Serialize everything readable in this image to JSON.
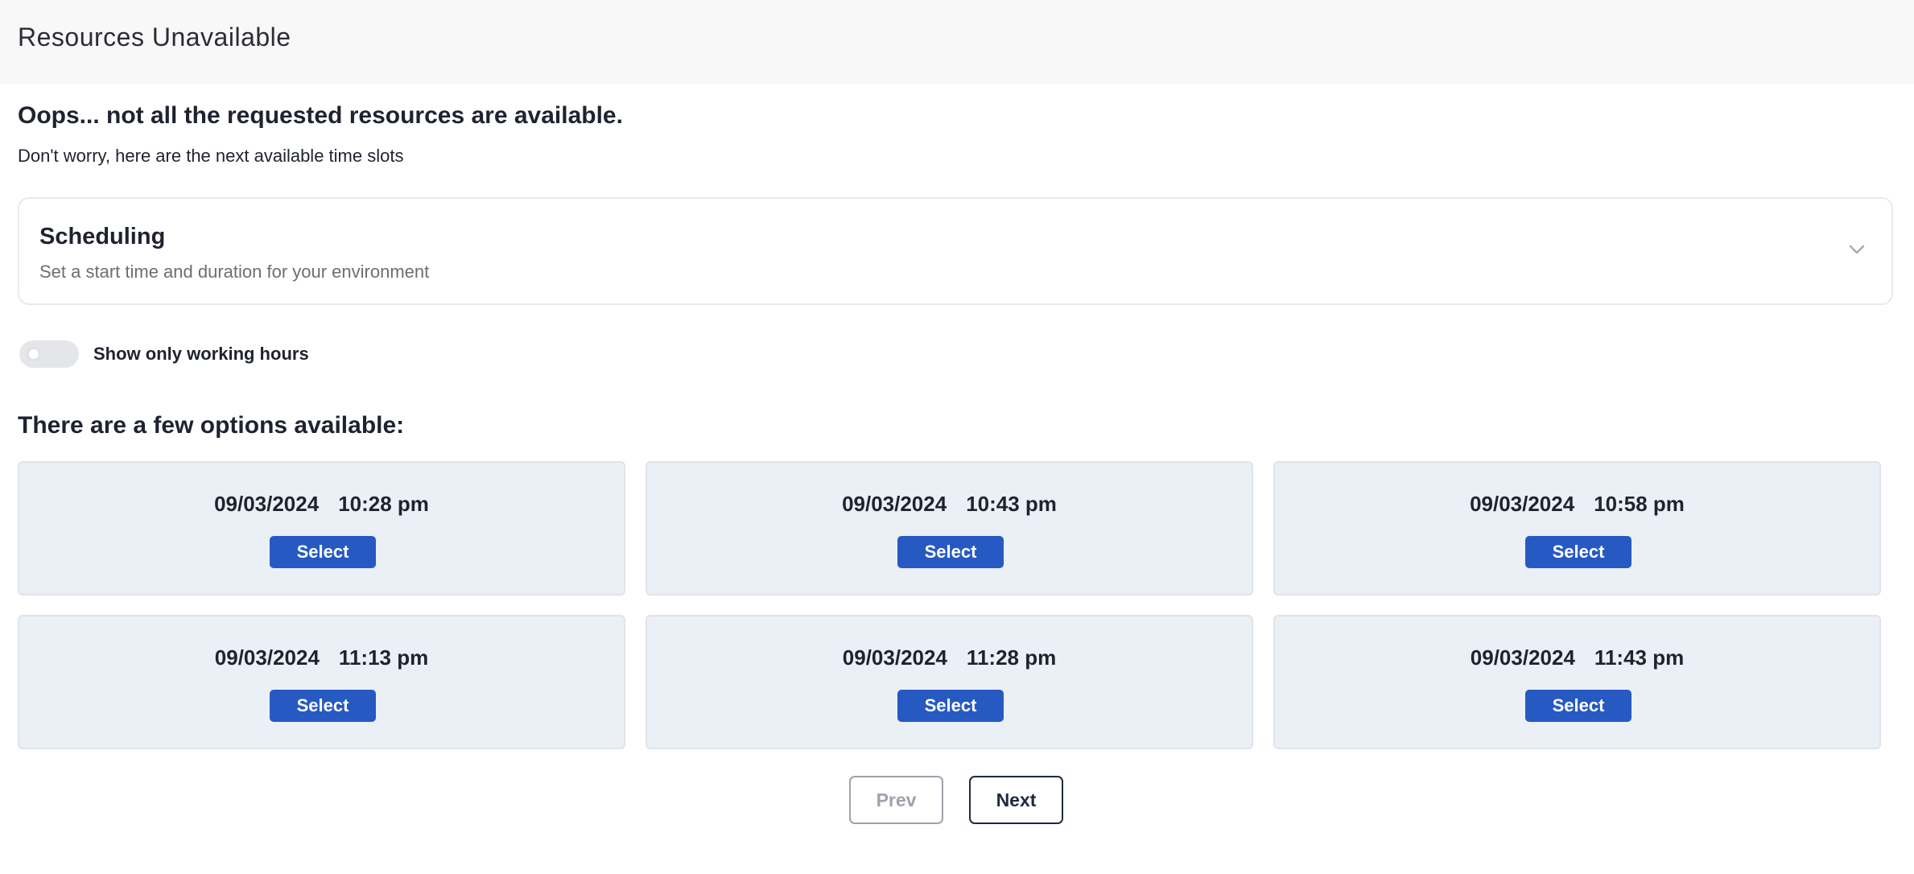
{
  "header": {
    "title": "Resources Unavailable"
  },
  "message": {
    "heading": "Oops... not all the requested resources are available.",
    "subtext": "Don't worry, here are the next available time slots"
  },
  "scheduling": {
    "title": "Scheduling",
    "subtitle": "Set a start time and duration for your environment",
    "expanded": false,
    "icon": "chevron-down-icon"
  },
  "working_hours_toggle": {
    "label": "Show only working hours",
    "checked": false
  },
  "options": {
    "title": "There are a few options available:",
    "slots": [
      {
        "date": "09/03/2024",
        "time": "10:28 pm",
        "button": "Select"
      },
      {
        "date": "09/03/2024",
        "time": "10:43 pm",
        "button": "Select"
      },
      {
        "date": "09/03/2024",
        "time": "10:58 pm",
        "button": "Select"
      },
      {
        "date": "09/03/2024",
        "time": "11:13 pm",
        "button": "Select"
      },
      {
        "date": "09/03/2024",
        "time": "11:28 pm",
        "button": "Select"
      },
      {
        "date": "09/03/2024",
        "time": "11:43 pm",
        "button": "Select"
      }
    ]
  },
  "pagination": {
    "prev": "Prev",
    "next": "Next",
    "prev_disabled": true
  },
  "colors": {
    "primary": "#2659c2",
    "slot_bg": "#ebeff6",
    "text": "#1f2330"
  }
}
